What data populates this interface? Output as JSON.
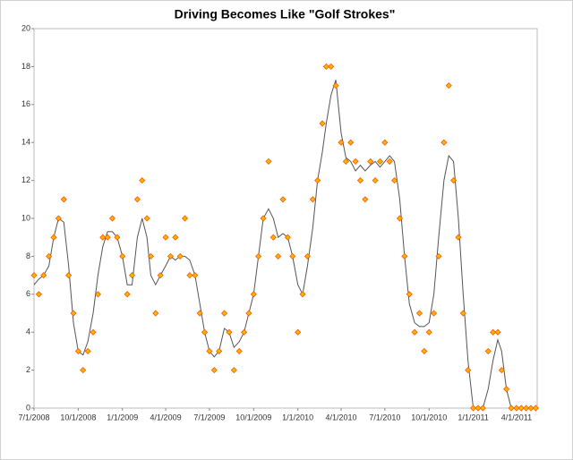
{
  "chart_data": {
    "type": "scatter",
    "title": "Driving Becomes Like \"Golf Strokes\"",
    "x": [
      "2008-07-01",
      "2008-07-11",
      "2008-07-21",
      "2008-08-01",
      "2008-08-11",
      "2008-08-21",
      "2008-09-01",
      "2008-09-11",
      "2008-09-21",
      "2008-10-01",
      "2008-10-11",
      "2008-10-21",
      "2008-11-01",
      "2008-11-11",
      "2008-11-21",
      "2008-12-01",
      "2008-12-11",
      "2008-12-21",
      "2009-01-01",
      "2009-01-11",
      "2009-01-21",
      "2009-02-01",
      "2009-02-11",
      "2009-02-21",
      "2009-03-01",
      "2009-03-11",
      "2009-03-21",
      "2009-04-01",
      "2009-04-11",
      "2009-04-21",
      "2009-05-01",
      "2009-05-11",
      "2009-05-21",
      "2009-06-01",
      "2009-06-11",
      "2009-06-21",
      "2009-07-01",
      "2009-07-11",
      "2009-07-21",
      "2009-08-01",
      "2009-08-11",
      "2009-08-21",
      "2009-09-01",
      "2009-09-11",
      "2009-09-21",
      "2009-10-01",
      "2009-10-11",
      "2009-10-21",
      "2009-11-01",
      "2009-11-11",
      "2009-11-21",
      "2009-12-01",
      "2009-12-11",
      "2009-12-21",
      "2010-01-01",
      "2010-01-11",
      "2010-01-21",
      "2010-02-01",
      "2010-02-11",
      "2010-02-21",
      "2010-03-01",
      "2010-03-11",
      "2010-03-21",
      "2010-04-01",
      "2010-04-11",
      "2010-04-21",
      "2010-05-01",
      "2010-05-11",
      "2010-05-21",
      "2010-06-01",
      "2010-06-11",
      "2010-06-21",
      "2010-07-01",
      "2010-07-11",
      "2010-07-21",
      "2010-08-01",
      "2010-08-11",
      "2010-08-21",
      "2010-09-01",
      "2010-09-11",
      "2010-09-21",
      "2010-10-01",
      "2010-10-11",
      "2010-10-21",
      "2010-11-01",
      "2010-11-11",
      "2010-11-21",
      "2010-12-01",
      "2010-12-11",
      "2010-12-21",
      "2011-01-01",
      "2011-01-11",
      "2011-01-21",
      "2011-02-01",
      "2011-02-11",
      "2011-02-21",
      "2011-03-01",
      "2011-03-11",
      "2011-03-21",
      "2011-04-01",
      "2011-04-11",
      "2011-04-21",
      "2011-05-01",
      "2011-05-11"
    ],
    "series": [
      {
        "mode": "markers",
        "color": "#ffb300",
        "edge_color": "#f25c05",
        "values": [
          7,
          6,
          7,
          8,
          9,
          10,
          11,
          7,
          5,
          3,
          2,
          3,
          4,
          6,
          9,
          9,
          10,
          9,
          8,
          6,
          7,
          11,
          12,
          10,
          8,
          5,
          7,
          9,
          8,
          9,
          8,
          10,
          7,
          7,
          5,
          4,
          3,
          2,
          3,
          5,
          4,
          2,
          3,
          4,
          5,
          6,
          8,
          10,
          13,
          9,
          8,
          11,
          9,
          8,
          4,
          6,
          8,
          11,
          12,
          15,
          18,
          18,
          17,
          14,
          13,
          14,
          13,
          12,
          11,
          13,
          12,
          13,
          14,
          13,
          12,
          10,
          8,
          6,
          4,
          5,
          3,
          4,
          5,
          8,
          14,
          17,
          12,
          9,
          5,
          2,
          0,
          0,
          0,
          3,
          4,
          4,
          2,
          1,
          0,
          0,
          0,
          0,
          0,
          0
        ]
      },
      {
        "mode": "line",
        "color": "#555555",
        "values": [
          6.5,
          6.8,
          7,
          7.5,
          9,
          10,
          9.8,
          7.5,
          4.5,
          3,
          2.8,
          3.5,
          5,
          7,
          8.5,
          9.3,
          9.3,
          9,
          8,
          6.5,
          6.5,
          9,
          10,
          9,
          7,
          6.5,
          7,
          7.5,
          8,
          7.8,
          8,
          8,
          7.8,
          7,
          5.5,
          4,
          3,
          2.7,
          3,
          4.2,
          4,
          3.2,
          3.5,
          4,
          5,
          6,
          8,
          10,
          10.5,
          10,
          9,
          9.2,
          9,
          8,
          6.5,
          6,
          7.5,
          9.5,
          12,
          13.5,
          15,
          16.5,
          17.3,
          14.5,
          13.2,
          13,
          12.5,
          12.8,
          12.5,
          12.8,
          13,
          12.7,
          13,
          13.3,
          13,
          11,
          8,
          5.5,
          4.5,
          4.3,
          4.3,
          4.5,
          6,
          9,
          12,
          13.3,
          13,
          10,
          6,
          2.5,
          0,
          0,
          0,
          1,
          2.5,
          3.6,
          3,
          1,
          0,
          0,
          0,
          0,
          0,
          0
        ]
      }
    ],
    "xlim": [
      "2008-07-01",
      "2011-05-14"
    ],
    "xticks": [
      {
        "value": "2008-07-01",
        "label": "7/1/2008"
      },
      {
        "value": "2008-10-01",
        "label": "10/1/2008"
      },
      {
        "value": "2009-01-01",
        "label": "1/1/2009"
      },
      {
        "value": "2009-04-01",
        "label": "4/1/2009"
      },
      {
        "value": "2009-07-01",
        "label": "7/1/2009"
      },
      {
        "value": "2009-10-01",
        "label": "10/1/2009"
      },
      {
        "value": "2010-01-01",
        "label": "1/1/2010"
      },
      {
        "value": "2010-04-01",
        "label": "4/1/2010"
      },
      {
        "value": "2010-07-01",
        "label": "7/1/2010"
      },
      {
        "value": "2010-10-01",
        "label": "10/1/2010"
      },
      {
        "value": "2011-01-01",
        "label": "1/1/2011"
      },
      {
        "value": "2011-04-01",
        "label": "4/1/2011"
      }
    ],
    "ylim": [
      0,
      20
    ],
    "yticks": [
      0,
      2,
      4,
      6,
      8,
      10,
      12,
      14,
      16,
      18,
      20
    ],
    "grid": false
  }
}
